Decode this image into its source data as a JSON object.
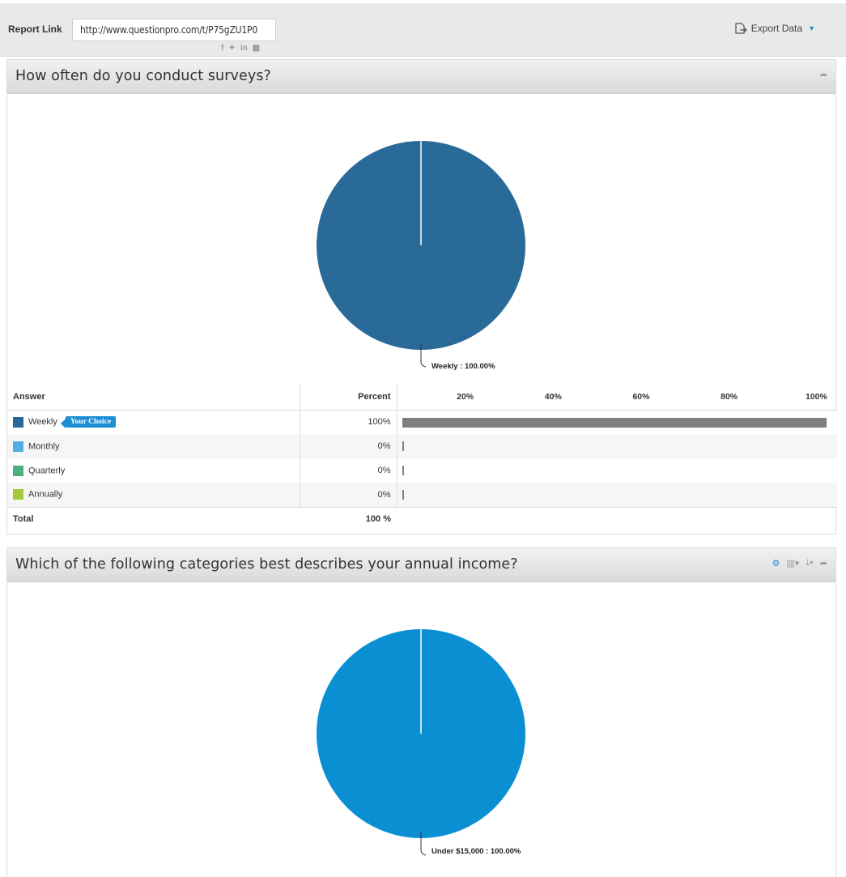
{
  "topbar": {
    "report_label": "Report Link",
    "report_url": "http://www.questionpro.com/t/P75gZU1P0",
    "share_icons": [
      "facebook-icon",
      "twitter-icon",
      "linkedin-icon",
      "qr-code-icon"
    ],
    "export_label": "Export Data"
  },
  "question1": {
    "title": "How often do you conduct surveys?",
    "pie_label": "Weekly : 100.00%",
    "table": {
      "headers": {
        "answer": "Answer",
        "percent": "Percent"
      },
      "ticks": [
        "20%",
        "40%",
        "60%",
        "80%",
        "100%"
      ],
      "rows": [
        {
          "label": "Weekly",
          "percent": "100%",
          "value": 100,
          "color": "#2a6a98",
          "badge": "Your Choice"
        },
        {
          "label": "Monthly",
          "percent": "0%",
          "value": 0,
          "color": "#52aee0"
        },
        {
          "label": "Quarterly",
          "percent": "0%",
          "value": 0,
          "color": "#4faf7c"
        },
        {
          "label": "Annually",
          "percent": "0%",
          "value": 0,
          "color": "#a3c83a"
        }
      ],
      "total_label": "Total",
      "total_value": "100 %"
    },
    "chart_data": {
      "type": "pie",
      "categories": [
        "Weekly"
      ],
      "values": [
        100
      ],
      "colors": [
        "#2a6a98"
      ]
    }
  },
  "question2": {
    "title": "Which of the following categories best describes your annual income?",
    "pie_label": "Under $15,000 : 100.00%",
    "chart_data": {
      "type": "pie",
      "categories": [
        "Under $15,000"
      ],
      "values": [
        100
      ],
      "colors": [
        "#0a8fd3"
      ]
    }
  }
}
